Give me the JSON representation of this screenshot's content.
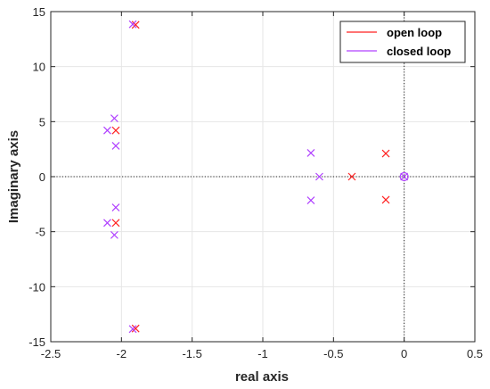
{
  "chart_data": {
    "type": "scatter",
    "xlabel": "real axis",
    "ylabel": "Imaginary axis",
    "xlim": [
      -2.5,
      0.5
    ],
    "ylim": [
      -15,
      15
    ],
    "x_ticks": [
      -2.5,
      -2,
      -1.5,
      -1,
      -0.5,
      0,
      0.5
    ],
    "y_ticks": [
      -15,
      -10,
      -5,
      0,
      5,
      10,
      15
    ],
    "x_tick_labels": [
      "-2.5",
      "-2",
      "-1.5",
      "-1",
      "-0.5",
      "0",
      "0.5"
    ],
    "y_tick_labels": [
      "-15",
      "-10",
      "-5",
      "0",
      "5",
      "10",
      "15"
    ],
    "grid": true,
    "zero_lines": "dotted",
    "legend_position": "top-right",
    "series": [
      {
        "name": "open loop",
        "color": "#ff2020",
        "marker": "x",
        "points": [
          {
            "x": -1.9,
            "y": 13.8
          },
          {
            "x": -1.9,
            "y": -13.8
          },
          {
            "x": -2.04,
            "y": 4.2
          },
          {
            "x": -2.04,
            "y": -4.2
          },
          {
            "x": -0.37,
            "y": 0
          },
          {
            "x": -0.13,
            "y": 2.1
          },
          {
            "x": -0.13,
            "y": -2.1
          }
        ],
        "zeros": []
      },
      {
        "name": "closed loop",
        "color": "#b040ff",
        "marker": "x",
        "points": [
          {
            "x": -1.92,
            "y": 13.85
          },
          {
            "x": -1.92,
            "y": -13.85
          },
          {
            "x": -2.05,
            "y": 5.3
          },
          {
            "x": -2.05,
            "y": -5.3
          },
          {
            "x": -2.1,
            "y": 4.2
          },
          {
            "x": -2.1,
            "y": -4.2
          },
          {
            "x": -2.04,
            "y": 2.8
          },
          {
            "x": -2.04,
            "y": -2.8
          },
          {
            "x": -0.66,
            "y": 2.15
          },
          {
            "x": -0.66,
            "y": -2.15
          },
          {
            "x": -0.6,
            "y": 0
          },
          {
            "x": 0,
            "y": 0
          }
        ],
        "zeros": [
          {
            "x": 0,
            "y": 0
          }
        ]
      }
    ]
  }
}
